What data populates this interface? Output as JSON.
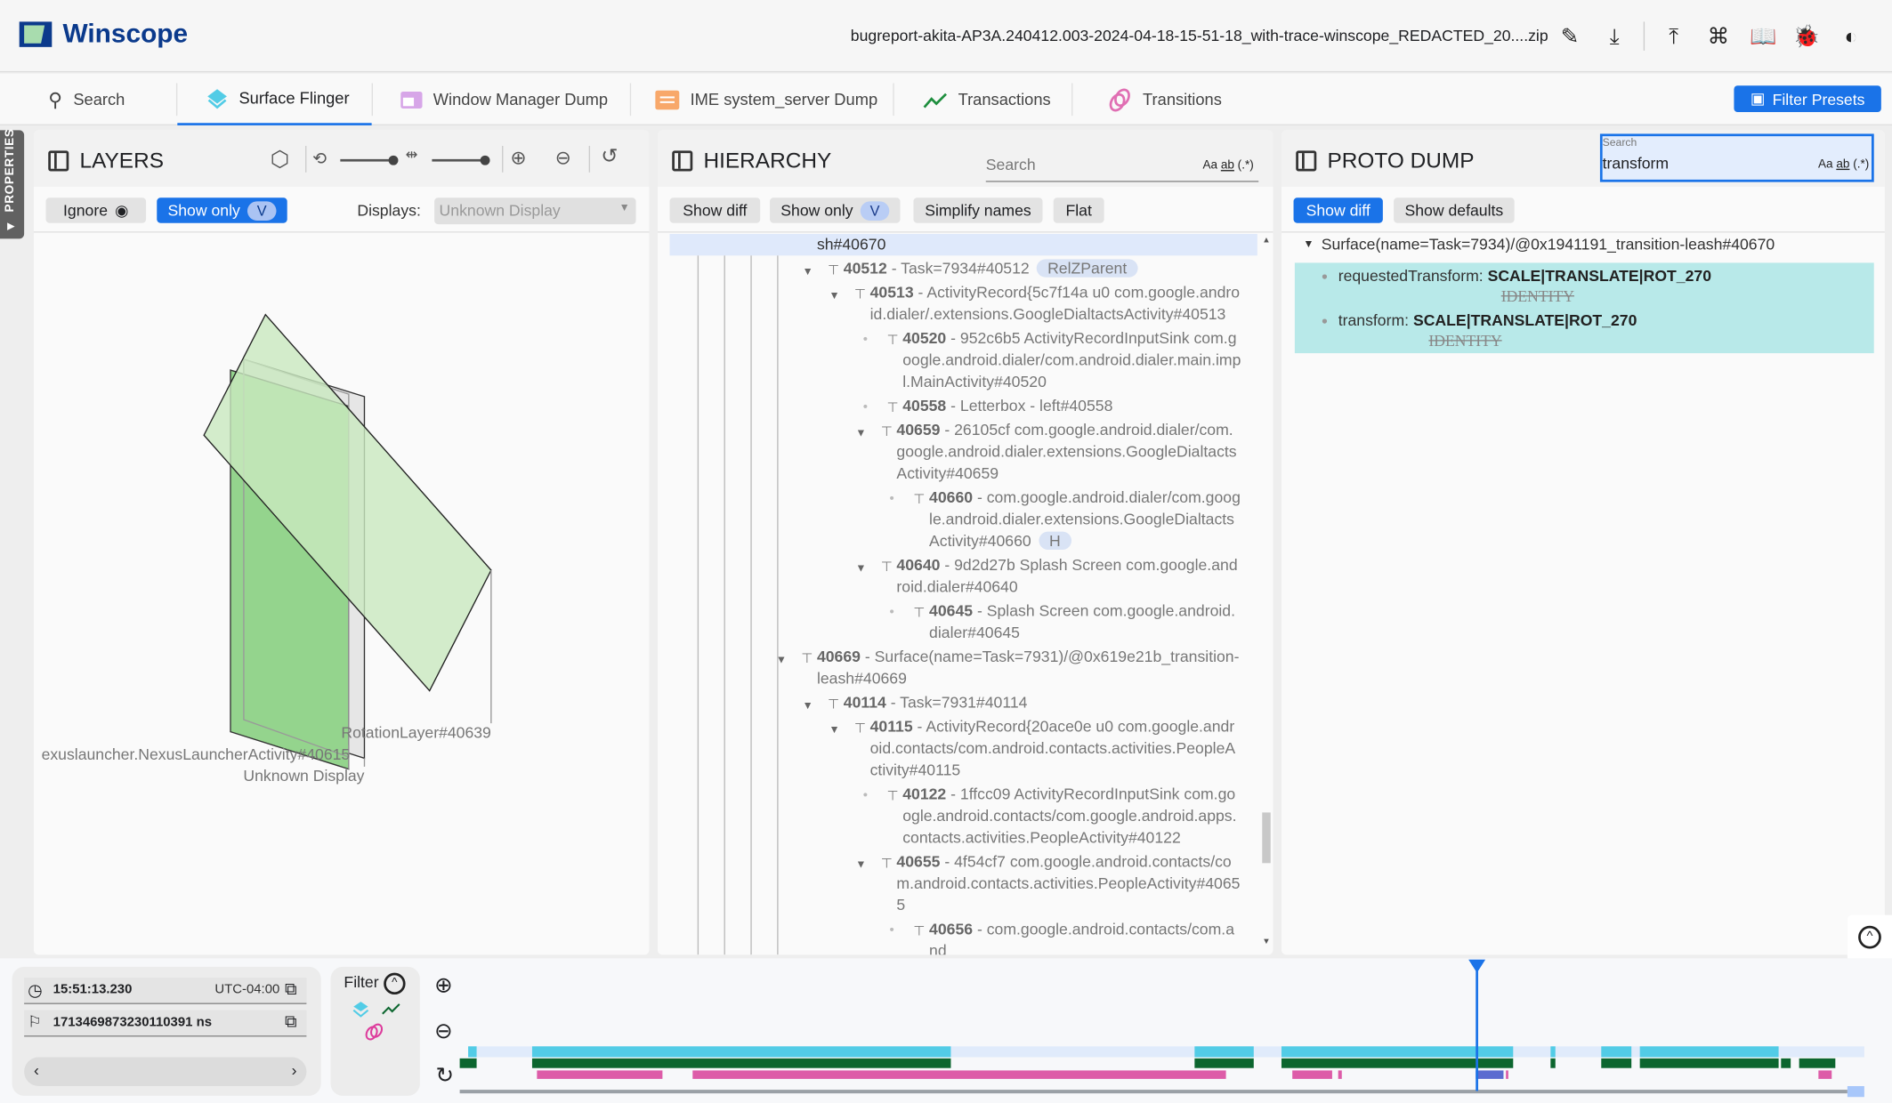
{
  "app": {
    "title": "Winscope",
    "filename": "bugreport-akita-AP3A.240412.003-2024-04-18-15-51-18_with-trace-winscope_REDACTED_20....zip",
    "header_icons": [
      "edit-icon",
      "download-icon",
      "upload-icon",
      "shortcuts-icon",
      "docs-icon",
      "bug-icon",
      "theme-icon"
    ]
  },
  "tabs": [
    {
      "label": "Search",
      "icon": "search-icon"
    },
    {
      "label": "Surface Flinger",
      "icon": "layers-icon",
      "active": true
    },
    {
      "label": "Window Manager Dump",
      "icon": "window-icon"
    },
    {
      "label": "IME system_server Dump",
      "icon": "keyboard-icon"
    },
    {
      "label": "Transactions",
      "icon": "chart-line-icon"
    },
    {
      "label": "Transitions",
      "icon": "transitions-icon"
    }
  ],
  "filter_presets": "Filter Presets",
  "properties_tab": "PROPERTIES",
  "colors": {
    "accent": "#1a73e8",
    "cyan": "#52cce6",
    "green": "#0c662f",
    "pink": "#dd5ca8",
    "highlight": "#b8e9e9"
  },
  "layers": {
    "title": "LAYERS",
    "ignore": "Ignore",
    "show_only": "Show only",
    "show_only_chip": "V",
    "displays_label": "Displays:",
    "displays_value": "Unknown Display",
    "labels": {
      "rotation": "RotationLayer#40639",
      "launcher": "exuslauncher.NexusLauncherActivity#40615",
      "display": "Unknown Display"
    }
  },
  "hierarchy": {
    "title": "HIERARCHY",
    "search_placeholder": "Search",
    "opts": [
      "Aa",
      "ab",
      "(.*)"
    ],
    "buttons": {
      "show_diff": "Show diff",
      "show_only": "Show only",
      "show_only_chip": "V",
      "simplify": "Simplify names",
      "flat": "Flat"
    },
    "selected_tail": "sh#40670",
    "rows": [
      {
        "id": "40512",
        "text": " - Task=7934#40512",
        "depth": 1,
        "kind": "expanded",
        "chip": "RelZParent"
      },
      {
        "id": "40513",
        "text": " - ActivityRecord{5c7f14a u0 com.google.android.dialer/.extensions.GoogleDialtactsActivity#40513",
        "depth": 2,
        "kind": "expanded"
      },
      {
        "id": "40520",
        "text": " - 952c6b5 ActivityRecordInputSink com.google.android.dialer/com.android.dialer.main.impl.MainActivity#40520",
        "depth": 3,
        "kind": "leaf"
      },
      {
        "id": "40558",
        "text": " - Letterbox - left#40558",
        "depth": 3,
        "kind": "leaf"
      },
      {
        "id": "40659",
        "text": " - 26105cf com.google.android.dialer/com.google.android.dialer.extensions.GoogleDialtactsActivity#40659",
        "depth": 3,
        "kind": "expanded"
      },
      {
        "id": "40660",
        "text": " - com.google.android.dialer/com.google.android.dialer.extensions.GoogleDialtactsActivity#40660",
        "depth": 4,
        "kind": "leaf",
        "chip": "H"
      },
      {
        "id": "40640",
        "text": " - 9d2d27b Splash Screen com.google.android.dialer#40640",
        "depth": 3,
        "kind": "expanded"
      },
      {
        "id": "40645",
        "text": " - Splash Screen com.google.android.dialer#40645",
        "depth": 4,
        "kind": "leaf"
      },
      {
        "id": "40669",
        "text": " - Surface(name=Task=7931)/@0x619e21b_transition-leash#40669",
        "depth": 0,
        "kind": "expanded"
      },
      {
        "id": "40114",
        "text": " - Task=7931#40114",
        "depth": 1,
        "kind": "expanded"
      },
      {
        "id": "40115",
        "text": " - ActivityRecord{20ace0e u0 com.google.android.contacts/com.android.contacts.activities.PeopleActivity#40115",
        "depth": 2,
        "kind": "expanded"
      },
      {
        "id": "40122",
        "text": " - 1ffcc09 ActivityRecordInputSink com.google.android.contacts/com.google.android.apps.contacts.activities.PeopleActivity#40122",
        "depth": 3,
        "kind": "leaf"
      },
      {
        "id": "40655",
        "text": " - 4f54cf7 com.google.android.contacts/com.android.contacts.activities.PeopleActivity#40655",
        "depth": 3,
        "kind": "expanded"
      },
      {
        "id": "40656",
        "text": " - com.google.android.contacts/com.and",
        "depth": 4,
        "kind": "leaf"
      }
    ]
  },
  "proto": {
    "title": "PROTO DUMP",
    "search_label": "Search",
    "search_value": "transform",
    "opts": [
      "Aa",
      "ab",
      "(.*)"
    ],
    "buttons": {
      "show_diff": "Show diff",
      "show_defaults": "Show defaults"
    },
    "root": "Surface(name=Task=7934)/@0x1941191_transition-leash#40670",
    "props": [
      {
        "key": "requestedTransform:",
        "value": "SCALE|TRANSLATE|ROT_270",
        "old": "IDENTITY"
      },
      {
        "key": "transform:",
        "value": "SCALE|TRANSLATE|ROT_270",
        "old": "IDENTITY"
      }
    ]
  },
  "timeline": {
    "time": "15:51:13.230",
    "timezone": "UTC-04:00",
    "ns": "1713469873230110391 ns",
    "filter": "Filter"
  }
}
